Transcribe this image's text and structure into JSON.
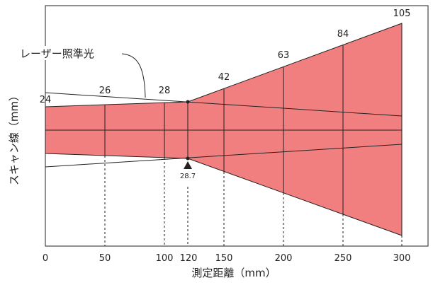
{
  "axes": {
    "x_title": "測定距離（mm）",
    "y_title": "スキャン線（mm）",
    "x_ticks": [
      "0",
      "50",
      "100",
      "120",
      "150",
      "200",
      "250",
      "300"
    ]
  },
  "callout": {
    "label": "レーザー照準光"
  },
  "scan_widths": [
    {
      "label": "24",
      "distance_mm": 0,
      "width_mm": 24
    },
    {
      "label": "26",
      "distance_mm": 50,
      "width_mm": 26
    },
    {
      "label": "28",
      "distance_mm": 100,
      "width_mm": 28
    },
    {
      "label": "42",
      "distance_mm": 150,
      "width_mm": 42
    },
    {
      "label": "63",
      "distance_mm": 200,
      "width_mm": 63
    },
    {
      "label": "84",
      "distance_mm": 250,
      "width_mm": 84
    },
    {
      "label": "105",
      "distance_mm": 300,
      "width_mm": 105
    }
  ],
  "minimum": {
    "label": "28.7",
    "distance_mm": 120
  },
  "colors": {
    "fill": "#f27f80",
    "stroke": "#222222"
  }
}
